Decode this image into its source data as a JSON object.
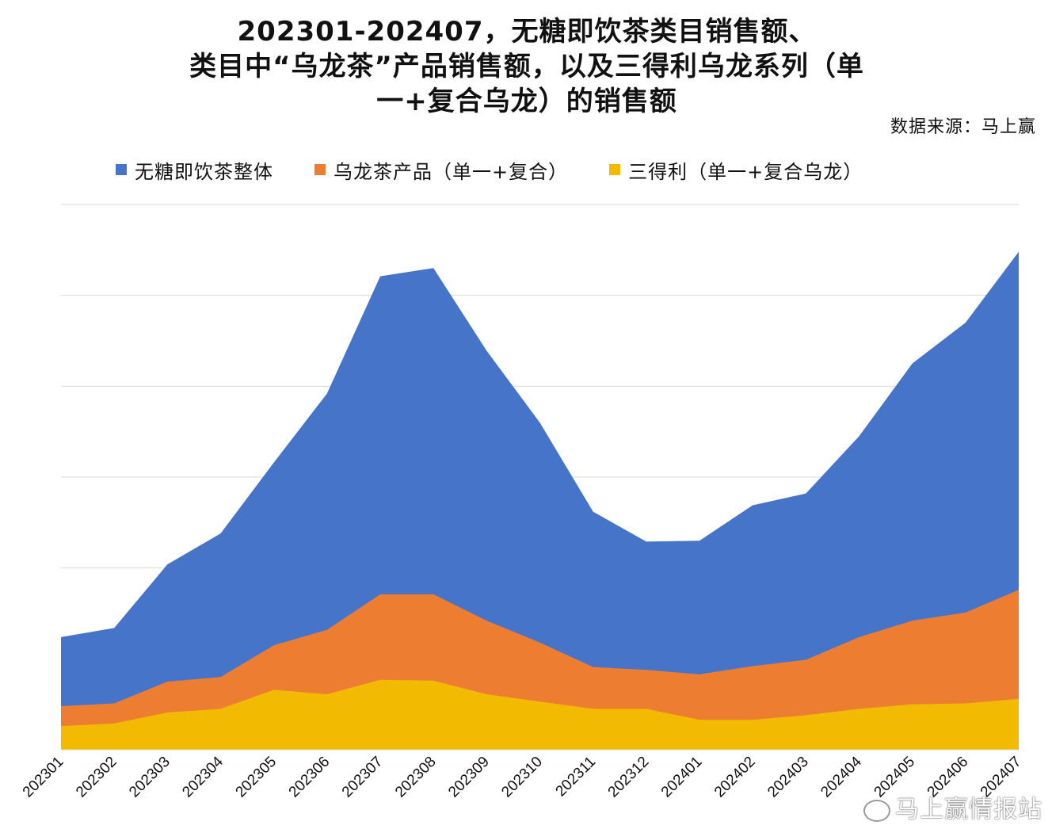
{
  "title_lines": [
    "202301-202407，无糖即饮茶类目销售额、",
    "类目中“乌龙茶”产品销售额，以及三得利乌龙系列（单",
    "一+复合乌龙）的销售额"
  ],
  "source": "数据来源：马上赢",
  "watermark": "马上赢情报站",
  "colors": {
    "blue": "#4674C9",
    "orange": "#ED7D31",
    "yellow": "#F2BA00",
    "grid": "#d9d9d9"
  },
  "legend": [
    {
      "label": "无糖即饮茶整体",
      "color": "#4674C9"
    },
    {
      "label": "乌龙茶产品（单一+复合）",
      "color": "#ED7D31"
    },
    {
      "label": "三得利（单一+复合乌龙）",
      "color": "#F2BA00"
    }
  ],
  "chart_data": {
    "type": "area",
    "categories": [
      "202301",
      "202302",
      "202303",
      "202304",
      "202305",
      "202306",
      "202307",
      "202308",
      "202309",
      "202310",
      "202311",
      "202312",
      "202401",
      "202402",
      "202403",
      "202404",
      "202405",
      "202406",
      "202407"
    ],
    "series": [
      {
        "name": "无糖即饮茶整体",
        "values": [
          124,
          134,
          204,
          238,
          316,
          392,
          521,
          530,
          439,
          360,
          262,
          229,
          230,
          269,
          282,
          345,
          425,
          470,
          548
        ]
      },
      {
        "name": "乌龙茶产品（单一+复合）",
        "values": [
          48,
          51,
          75,
          80,
          115,
          132,
          171,
          171,
          142,
          118,
          91,
          88,
          83,
          92,
          99,
          124,
          142,
          151,
          176
        ]
      },
      {
        "name": "三得利（单一+复合乌龙）",
        "values": [
          26,
          29,
          41,
          45,
          66,
          61,
          77,
          76,
          61,
          53,
          45,
          45,
          33,
          33,
          38,
          45,
          50,
          51,
          56
        ]
      }
    ],
    "ylim": [
      0,
      600
    ],
    "y_ticks": [
      0,
      100,
      200,
      300,
      400,
      500,
      600
    ],
    "y_tick_labels_visible": false,
    "grid": true,
    "legend_position": "top"
  }
}
